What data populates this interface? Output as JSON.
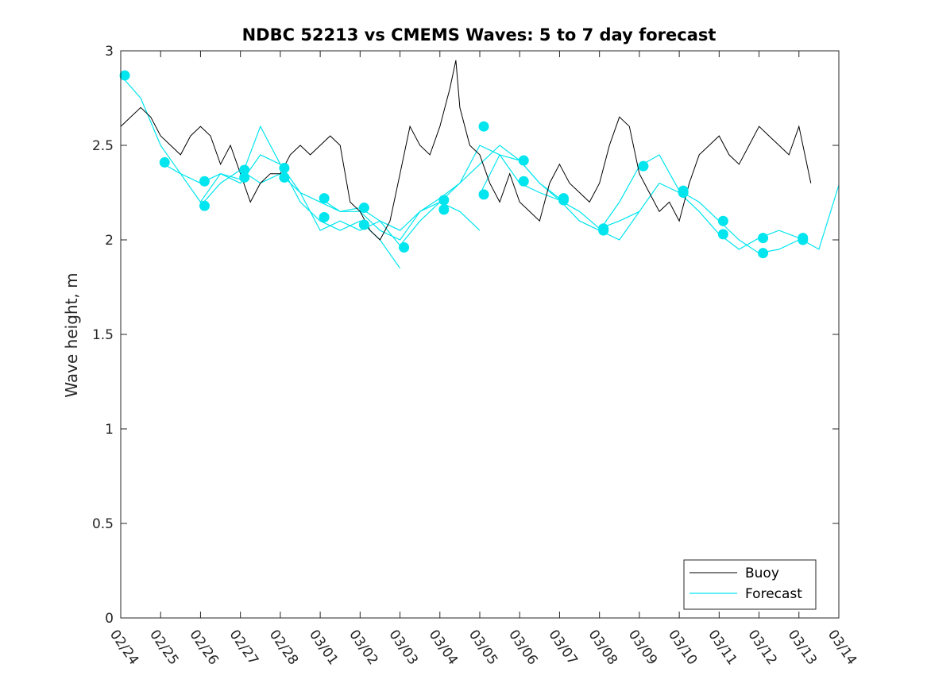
{
  "chart_data": {
    "type": "line",
    "title": "NDBC 52213 vs CMEMS Waves: 5 to 7 day forecast",
    "xlabel": "",
    "ylabel": "Wave height, m",
    "xlim": [
      0,
      18
    ],
    "ylim": [
      0,
      3
    ],
    "xtick_labels": [
      "02/24",
      "02/25",
      "02/26",
      "02/27",
      "02/28",
      "03/01",
      "03/02",
      "03/03",
      "03/04",
      "03/05",
      "03/06",
      "03/07",
      "03/08",
      "03/09",
      "03/10",
      "03/11",
      "03/12",
      "03/13",
      "03/14"
    ],
    "yticks": [
      0,
      0.5,
      1,
      1.5,
      2,
      2.5,
      3
    ],
    "ytick_labels": [
      "0",
      "0.5",
      "1",
      "1.5",
      "2",
      "2.5",
      "3"
    ],
    "legend": {
      "position": "bottom-right",
      "entries": [
        "Buoy",
        "Forecast"
      ]
    },
    "colors": {
      "buoy": "#000000",
      "forecast": "#00e5ee",
      "axis": "#262626"
    },
    "series": [
      {
        "name": "Buoy",
        "x": [
          0.0,
          0.25,
          0.5,
          0.75,
          1.0,
          1.25,
          1.5,
          1.75,
          2.0,
          2.25,
          2.5,
          2.75,
          3.0,
          3.25,
          3.5,
          3.75,
          4.0,
          4.25,
          4.5,
          4.75,
          5.0,
          5.25,
          5.5,
          5.75,
          6.0,
          6.25,
          6.5,
          6.75,
          7.0,
          7.25,
          7.5,
          7.75,
          8.0,
          8.25,
          8.4,
          8.5,
          8.75,
          9.0,
          9.25,
          9.5,
          9.75,
          10.0,
          10.25,
          10.5,
          10.75,
          11.0,
          11.25,
          11.5,
          11.75,
          12.0,
          12.25,
          12.5,
          12.75,
          13.0,
          13.25,
          13.5,
          13.75,
          14.0,
          14.25,
          14.5,
          14.75,
          15.0,
          15.25,
          15.5,
          15.75,
          16.0,
          16.25,
          16.5,
          16.75,
          17.0,
          17.3
        ],
        "values": [
          2.6,
          2.65,
          2.7,
          2.65,
          2.55,
          2.5,
          2.45,
          2.55,
          2.6,
          2.55,
          2.4,
          2.5,
          2.35,
          2.2,
          2.3,
          2.35,
          2.35,
          2.45,
          2.5,
          2.45,
          2.5,
          2.55,
          2.5,
          2.2,
          2.15,
          2.05,
          2.0,
          2.1,
          2.35,
          2.6,
          2.5,
          2.45,
          2.6,
          2.8,
          2.95,
          2.7,
          2.5,
          2.45,
          2.3,
          2.2,
          2.35,
          2.2,
          2.15,
          2.1,
          2.3,
          2.4,
          2.3,
          2.25,
          2.2,
          2.3,
          2.5,
          2.65,
          2.6,
          2.35,
          2.25,
          2.15,
          2.2,
          2.1,
          2.3,
          2.45,
          2.5,
          2.55,
          2.45,
          2.4,
          2.5,
          2.6,
          2.55,
          2.5,
          2.45,
          2.6,
          2.3
        ]
      },
      {
        "name": "Forecast",
        "points": [
          {
            "x": 0.1,
            "y": 2.87
          },
          {
            "x": 1.1,
            "y": 2.41
          },
          {
            "x": 2.1,
            "y": 2.31
          },
          {
            "x": 2.1,
            "y": 2.18
          },
          {
            "x": 3.1,
            "y": 2.37
          },
          {
            "x": 3.1,
            "y": 2.33
          },
          {
            "x": 4.1,
            "y": 2.38
          },
          {
            "x": 4.1,
            "y": 2.33
          },
          {
            "x": 5.1,
            "y": 2.22
          },
          {
            "x": 5.1,
            "y": 2.12
          },
          {
            "x": 6.1,
            "y": 2.17
          },
          {
            "x": 6.1,
            "y": 2.08
          },
          {
            "x": 7.1,
            "y": 1.96
          },
          {
            "x": 8.1,
            "y": 2.21
          },
          {
            "x": 8.1,
            "y": 2.16
          },
          {
            "x": 9.1,
            "y": 2.6
          },
          {
            "x": 9.1,
            "y": 2.24
          },
          {
            "x": 10.1,
            "y": 2.42
          },
          {
            "x": 10.1,
            "y": 2.31
          },
          {
            "x": 11.1,
            "y": 2.22
          },
          {
            "x": 11.1,
            "y": 2.21
          },
          {
            "x": 12.1,
            "y": 2.06
          },
          {
            "x": 12.1,
            "y": 2.05
          },
          {
            "x": 13.1,
            "y": 2.39
          },
          {
            "x": 14.1,
            "y": 2.26
          },
          {
            "x": 14.1,
            "y": 2.25
          },
          {
            "x": 15.1,
            "y": 2.1
          },
          {
            "x": 15.1,
            "y": 2.03
          },
          {
            "x": 16.1,
            "y": 2.01
          },
          {
            "x": 16.1,
            "y": 1.93
          },
          {
            "x": 17.1,
            "y": 2.01
          },
          {
            "x": 17.1,
            "y": 2.0
          }
        ],
        "lines": [
          {
            "x": [
              0.0,
              0.5,
              1.0,
              1.5,
              2.0,
              2.5,
              3.0,
              3.5,
              4.0,
              4.5,
              5.0,
              5.5,
              6.0,
              6.5,
              7.0
            ],
            "values": [
              2.87,
              2.75,
              2.5,
              2.35,
              2.3,
              2.35,
              2.3,
              2.45,
              2.4,
              2.2,
              2.1,
              2.05,
              2.1,
              2.0,
              1.85
            ]
          },
          {
            "x": [
              1.0,
              1.5,
              2.0,
              2.5,
              3.0,
              3.5,
              4.0,
              4.5,
              5.0,
              5.5,
              6.0,
              6.5,
              7.0,
              7.5,
              8.0,
              8.5,
              9.0
            ],
            "values": [
              2.41,
              2.35,
              2.2,
              2.35,
              2.32,
              2.6,
              2.4,
              2.25,
              2.05,
              2.1,
              2.05,
              2.1,
              1.97,
              2.1,
              2.2,
              2.15,
              2.05
            ]
          },
          {
            "x": [
              2.0,
              2.5,
              3.0,
              3.5,
              4.0,
              4.5,
              5.0,
              5.5,
              6.0,
              6.5,
              7.0,
              7.5,
              8.0,
              8.5,
              9.0,
              9.5,
              10.0,
              10.5,
              11.0
            ],
            "values": [
              2.18,
              2.3,
              2.37,
              2.3,
              2.35,
              2.25,
              2.2,
              2.15,
              2.15,
              2.05,
              2.0,
              2.15,
              2.22,
              2.3,
              2.4,
              2.5,
              2.42,
              2.3,
              2.22
            ]
          },
          {
            "x": [
              5.0,
              5.5,
              6.0,
              6.5,
              7.0,
              7.5,
              8.0,
              8.5,
              9.0,
              9.5,
              10.0,
              10.5,
              11.0,
              11.5,
              12.0,
              12.5,
              13.0
            ],
            "values": [
              2.22,
              2.15,
              2.17,
              2.1,
              2.05,
              2.15,
              2.2,
              2.3,
              2.5,
              2.45,
              2.3,
              2.25,
              2.21,
              2.15,
              2.06,
              2.1,
              2.15
            ]
          },
          {
            "x": [
              9.0,
              9.5,
              10.0,
              10.5,
              11.0,
              11.5,
              12.0,
              12.5,
              13.0,
              13.5,
              14.0,
              14.5,
              15.0,
              15.5,
              16.0,
              16.5,
              17.0
            ],
            "values": [
              2.24,
              2.45,
              2.42,
              2.3,
              2.21,
              2.1,
              2.05,
              2.2,
              2.39,
              2.45,
              2.26,
              2.2,
              2.1,
              2.0,
              1.93,
              1.95,
              2.0
            ]
          },
          {
            "x": [
              12.0,
              12.5,
              13.0,
              13.5,
              14.0,
              14.5,
              15.0,
              15.5,
              16.0,
              16.5,
              17.0,
              17.5,
              18.0
            ],
            "values": [
              2.05,
              2.0,
              2.15,
              2.3,
              2.25,
              2.15,
              2.03,
              1.95,
              2.01,
              2.05,
              2.01,
              1.95,
              2.29
            ]
          }
        ]
      }
    ]
  }
}
